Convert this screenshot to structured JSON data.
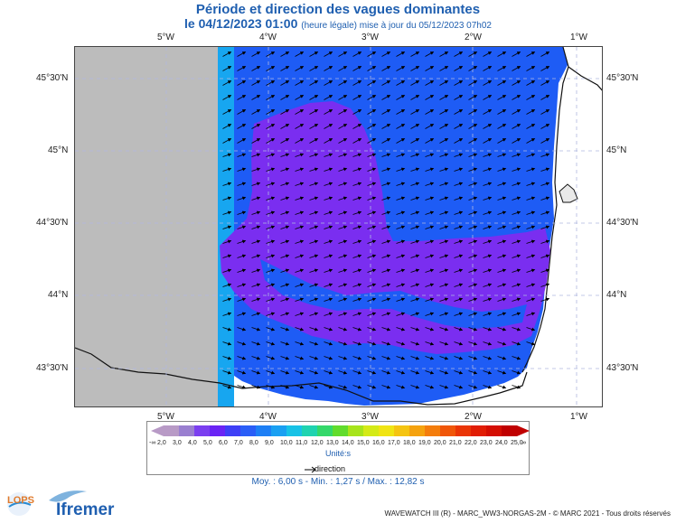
{
  "header": {
    "title": "Période et direction des vagues dominantes",
    "date": "le 04/12/2023 01:00",
    "update_note": "(heure légale) mise à jour du 05/12/2023 07h02"
  },
  "map": {
    "lon_labels_top": [
      "5°W",
      "4°W",
      "3°W",
      "2°W",
      "1°W"
    ],
    "lon_labels_bottom": [
      "5°W",
      "4°W",
      "3°W",
      "2°W",
      "1°W"
    ],
    "lat_labels_left": [
      "45°30'N",
      "45°N",
      "44°30'N",
      "44°N",
      "43°30'N"
    ],
    "lat_labels_right": [
      "45°30'N",
      "45°N",
      "44°30'N",
      "44°N",
      "43°30'N"
    ],
    "colors": {
      "land": "#bcbcbc",
      "blue_period": "#1e5cf5",
      "purple_period": "#7a2ef0",
      "light_blue_period": "#17a6f0",
      "coast": "#111111",
      "grid": "#b0b8e0"
    }
  },
  "legend": {
    "ticks": [
      "2,0",
      "3,0",
      "4,0",
      "5,0",
      "6,0",
      "7,0",
      "8,0",
      "9,0",
      "10,0",
      "11,0",
      "12,0",
      "13,0",
      "14,0",
      "15,0",
      "16,0",
      "17,0",
      "18,0",
      "19,0",
      "20,0",
      "21,0",
      "22,0",
      "23,0",
      "24,0",
      "25,0"
    ],
    "under_symbol": "-∞",
    "over_symbol": "∞",
    "colors": [
      "#b89ac6",
      "#9a7fd0",
      "#7b3ff0",
      "#6a24f5",
      "#3e3ff6",
      "#2a5ef7",
      "#1e7ff5",
      "#1aa0f2",
      "#18c2e6",
      "#1fd3b0",
      "#34d86a",
      "#61dc2c",
      "#a7e41b",
      "#d4ea16",
      "#f0e413",
      "#f5c411",
      "#f5a20e",
      "#f47d0c",
      "#f05609",
      "#ea3506",
      "#e11d04",
      "#d40e02",
      "#c00000"
    ],
    "units": "Unité:s",
    "direction_label": "direction"
  },
  "stats": {
    "moy": "Moy. : 6,00 s",
    "min": "Min. : 1,27 s",
    "max": "Max. : 12,82 s",
    "text": "Moy. : 6,00 s   -   Min. : 1,27 s / Max. : 12,82 s"
  },
  "footer": {
    "logo_lops": "LOPS",
    "logo_ifremer": "Ifremer",
    "credit": "WAVEWATCH III (R) - MARC_WW3-NORGAS-2M - © MARC 2021 - Tous droits réservés"
  }
}
